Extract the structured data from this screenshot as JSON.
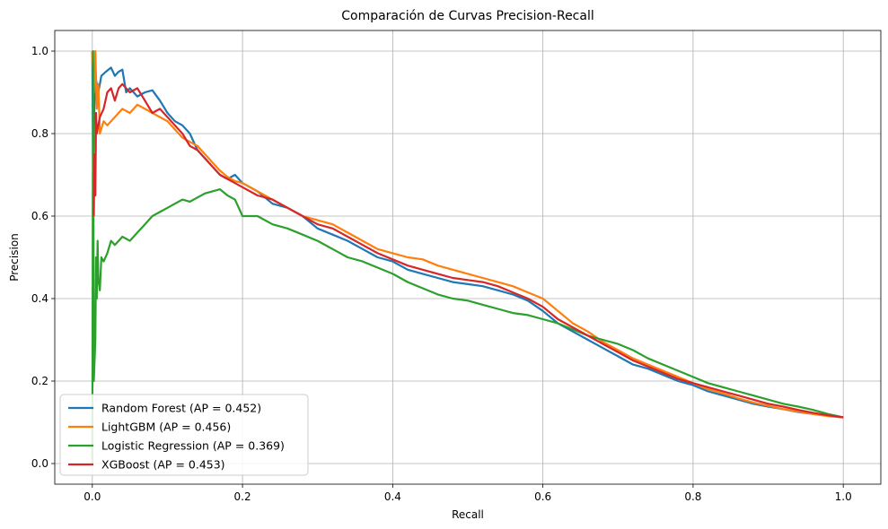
{
  "chart_data": {
    "type": "line",
    "title": "Comparación de Curvas Precision-Recall",
    "xlabel": "Recall",
    "ylabel": "Precision",
    "xlim": [
      -0.05,
      1.05
    ],
    "ylim": [
      -0.05,
      1.05
    ],
    "xticks": [
      "0.0",
      "0.2",
      "0.4",
      "0.6",
      "0.8",
      "1.0"
    ],
    "yticks": [
      "0.0",
      "0.2",
      "0.4",
      "0.6",
      "0.8",
      "1.0"
    ],
    "grid": true,
    "legend_position": "lower-left",
    "series": [
      {
        "name": "Random Forest (AP = 0.452)",
        "color": "#1f77b4",
        "x": [
          0.0,
          0.001,
          0.003,
          0.005,
          0.008,
          0.012,
          0.018,
          0.025,
          0.03,
          0.035,
          0.04,
          0.045,
          0.05,
          0.06,
          0.07,
          0.08,
          0.09,
          0.1,
          0.11,
          0.12,
          0.13,
          0.14,
          0.15,
          0.16,
          0.17,
          0.18,
          0.19,
          0.2,
          0.22,
          0.24,
          0.26,
          0.28,
          0.3,
          0.32,
          0.34,
          0.36,
          0.38,
          0.4,
          0.42,
          0.44,
          0.46,
          0.48,
          0.5,
          0.52,
          0.54,
          0.56,
          0.58,
          0.6,
          0.62,
          0.64,
          0.66,
          0.68,
          0.7,
          0.72,
          0.74,
          0.76,
          0.78,
          0.8,
          0.82,
          0.84,
          0.86,
          0.88,
          0.9,
          0.92,
          0.94,
          0.96,
          0.98,
          1.0
        ],
        "y": [
          1.0,
          0.7,
          0.88,
          0.93,
          0.9,
          0.94,
          0.95,
          0.96,
          0.94,
          0.95,
          0.955,
          0.9,
          0.91,
          0.89,
          0.9,
          0.905,
          0.88,
          0.85,
          0.83,
          0.82,
          0.8,
          0.76,
          0.74,
          0.72,
          0.7,
          0.69,
          0.7,
          0.68,
          0.66,
          0.63,
          0.62,
          0.6,
          0.57,
          0.555,
          0.54,
          0.52,
          0.5,
          0.49,
          0.47,
          0.46,
          0.45,
          0.44,
          0.435,
          0.43,
          0.42,
          0.41,
          0.395,
          0.37,
          0.34,
          0.32,
          0.3,
          0.28,
          0.26,
          0.24,
          0.23,
          0.215,
          0.2,
          0.19,
          0.175,
          0.165,
          0.155,
          0.145,
          0.138,
          0.132,
          0.125,
          0.12,
          0.116,
          0.112
        ]
      },
      {
        "name": "LightGBM (AP = 0.456)",
        "color": "#ff7f0e",
        "x": [
          0.0,
          0.002,
          0.004,
          0.006,
          0.008,
          0.01,
          0.015,
          0.02,
          0.03,
          0.04,
          0.05,
          0.06,
          0.07,
          0.08,
          0.09,
          0.1,
          0.11,
          0.12,
          0.13,
          0.14,
          0.15,
          0.16,
          0.17,
          0.18,
          0.19,
          0.2,
          0.22,
          0.24,
          0.26,
          0.28,
          0.3,
          0.32,
          0.34,
          0.36,
          0.38,
          0.4,
          0.42,
          0.44,
          0.46,
          0.48,
          0.5,
          0.52,
          0.54,
          0.56,
          0.58,
          0.6,
          0.62,
          0.64,
          0.66,
          0.68,
          0.7,
          0.72,
          0.74,
          0.76,
          0.78,
          0.8,
          0.82,
          0.84,
          0.86,
          0.88,
          0.9,
          0.92,
          0.94,
          0.96,
          0.98,
          1.0
        ],
        "y": [
          1.0,
          0.9,
          1.0,
          0.86,
          0.92,
          0.8,
          0.83,
          0.82,
          0.84,
          0.86,
          0.85,
          0.87,
          0.86,
          0.85,
          0.84,
          0.83,
          0.81,
          0.79,
          0.78,
          0.77,
          0.75,
          0.73,
          0.71,
          0.695,
          0.685,
          0.68,
          0.66,
          0.64,
          0.62,
          0.6,
          0.59,
          0.58,
          0.56,
          0.54,
          0.52,
          0.51,
          0.5,
          0.495,
          0.48,
          0.47,
          0.46,
          0.45,
          0.44,
          0.43,
          0.415,
          0.4,
          0.37,
          0.34,
          0.32,
          0.295,
          0.275,
          0.255,
          0.24,
          0.225,
          0.21,
          0.195,
          0.18,
          0.17,
          0.158,
          0.148,
          0.14,
          0.132,
          0.126,
          0.12,
          0.115,
          0.112
        ]
      },
      {
        "name": "Logistic Regression (AP = 0.369)",
        "color": "#2ca02c",
        "x": [
          0.0,
          0.001,
          0.002,
          0.004,
          0.005,
          0.006,
          0.007,
          0.008,
          0.01,
          0.012,
          0.015,
          0.02,
          0.025,
          0.03,
          0.04,
          0.05,
          0.06,
          0.07,
          0.08,
          0.09,
          0.1,
          0.11,
          0.12,
          0.13,
          0.14,
          0.15,
          0.16,
          0.17,
          0.18,
          0.19,
          0.2,
          0.22,
          0.24,
          0.26,
          0.28,
          0.3,
          0.32,
          0.34,
          0.36,
          0.38,
          0.4,
          0.42,
          0.44,
          0.46,
          0.48,
          0.5,
          0.52,
          0.54,
          0.56,
          0.58,
          0.6,
          0.62,
          0.64,
          0.66,
          0.68,
          0.7,
          0.72,
          0.74,
          0.76,
          0.78,
          0.8,
          0.82,
          0.84,
          0.86,
          0.88,
          0.9,
          0.92,
          0.94,
          0.96,
          0.98,
          1.0
        ],
        "y": [
          0.0,
          1.0,
          0.2,
          0.3,
          0.5,
          0.4,
          0.54,
          0.45,
          0.42,
          0.5,
          0.49,
          0.51,
          0.54,
          0.53,
          0.55,
          0.54,
          0.56,
          0.58,
          0.6,
          0.61,
          0.62,
          0.63,
          0.64,
          0.635,
          0.645,
          0.655,
          0.66,
          0.665,
          0.65,
          0.64,
          0.6,
          0.6,
          0.58,
          0.57,
          0.555,
          0.54,
          0.52,
          0.5,
          0.49,
          0.475,
          0.46,
          0.44,
          0.425,
          0.41,
          0.4,
          0.395,
          0.385,
          0.375,
          0.365,
          0.36,
          0.35,
          0.34,
          0.325,
          0.31,
          0.3,
          0.29,
          0.275,
          0.255,
          0.24,
          0.225,
          0.21,
          0.195,
          0.185,
          0.175,
          0.165,
          0.155,
          0.145,
          0.138,
          0.13,
          0.12,
          0.112
        ]
      },
      {
        "name": "XGBoost (AP = 0.453)",
        "color": "#d62728",
        "x": [
          0.002,
          0.003,
          0.004,
          0.005,
          0.006,
          0.008,
          0.01,
          0.015,
          0.02,
          0.025,
          0.03,
          0.035,
          0.04,
          0.05,
          0.06,
          0.07,
          0.08,
          0.09,
          0.1,
          0.11,
          0.12,
          0.13,
          0.14,
          0.15,
          0.16,
          0.17,
          0.18,
          0.19,
          0.2,
          0.22,
          0.24,
          0.26,
          0.28,
          0.3,
          0.32,
          0.34,
          0.36,
          0.38,
          0.4,
          0.42,
          0.44,
          0.46,
          0.48,
          0.5,
          0.52,
          0.54,
          0.56,
          0.58,
          0.6,
          0.62,
          0.64,
          0.66,
          0.68,
          0.7,
          0.72,
          0.74,
          0.76,
          0.78,
          0.8,
          0.82,
          0.84,
          0.86,
          0.88,
          0.9,
          0.92,
          0.94,
          0.96,
          0.98,
          1.0
        ],
        "y": [
          0.6,
          0.75,
          0.65,
          0.85,
          0.8,
          0.82,
          0.84,
          0.86,
          0.9,
          0.91,
          0.88,
          0.91,
          0.92,
          0.9,
          0.91,
          0.88,
          0.85,
          0.86,
          0.84,
          0.82,
          0.8,
          0.77,
          0.76,
          0.74,
          0.72,
          0.7,
          0.69,
          0.68,
          0.67,
          0.65,
          0.64,
          0.62,
          0.6,
          0.58,
          0.57,
          0.55,
          0.53,
          0.51,
          0.495,
          0.48,
          0.47,
          0.46,
          0.45,
          0.445,
          0.44,
          0.43,
          0.415,
          0.4,
          0.38,
          0.35,
          0.33,
          0.31,
          0.29,
          0.27,
          0.25,
          0.235,
          0.22,
          0.205,
          0.195,
          0.185,
          0.175,
          0.165,
          0.155,
          0.145,
          0.138,
          0.13,
          0.123,
          0.117,
          0.112
        ]
      }
    ]
  }
}
